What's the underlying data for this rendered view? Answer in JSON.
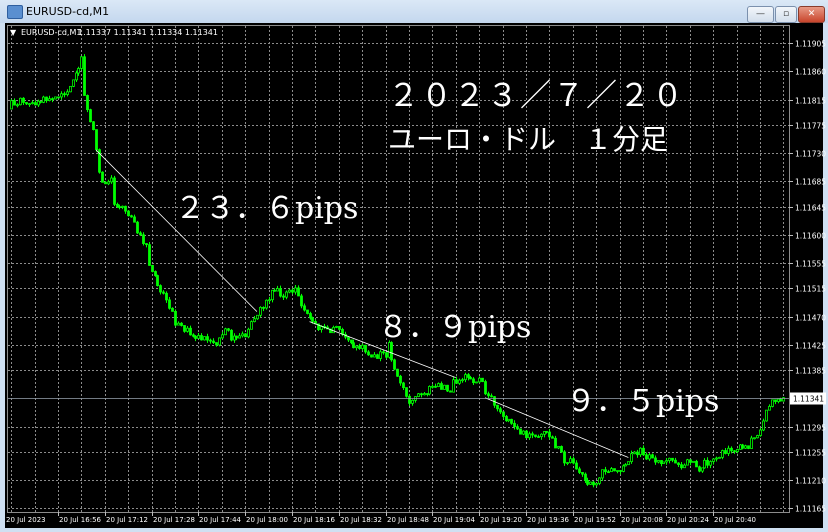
{
  "window": {
    "title": "EURUSD-cd,M1",
    "buttons": {
      "minimize": "—",
      "maximize": "▫",
      "close": "✕"
    }
  },
  "chart_header": {
    "symbol": "EURUSD-cd,M1",
    "ohlc": "1.11337 1.11341 1.11334 1.11341"
  },
  "colors": {
    "background": "#000000",
    "candle": "#00ff00",
    "grid": "#8c8c8c",
    "trendline": "#ffffff",
    "text": "#ffffff"
  },
  "annotations": {
    "date": "２０２３／７／２０",
    "subtitle": "ユーロ・ドル　１分足",
    "move1": "２３．６pips",
    "move2": "８．９pips",
    "move3": "９．５pips"
  },
  "chart_data": {
    "type": "candlestick",
    "symbol": "EURUSD-cd",
    "timeframe": "M1",
    "current_price": 1.11341,
    "y_ticks": [
      "1.11905",
      "1.11860",
      "1.11815",
      "1.11775",
      "1.11730",
      "1.11685",
      "1.11645",
      "1.11600",
      "1.11555",
      "1.11515",
      "1.11470",
      "1.11425",
      "1.11385",
      "1.11295",
      "1.11255",
      "1.11210",
      "1.11165"
    ],
    "x_ticks": [
      "20 Jul 2023",
      "20 Jul 16:56",
      "20 Jul 17:12",
      "20 Jul 17:28",
      "20 Jul 17:44",
      "20 Jul 18:00",
      "20 Jul 18:16",
      "20 Jul 18:32",
      "20 Jul 18:48",
      "20 Jul 19:04",
      "20 Jul 19:20",
      "20 Jul 19:36",
      "20 Jul 19:52",
      "20 Jul 20:08",
      "20 Jul 20:24",
      "20 Jul 20:40"
    ],
    "grid": true,
    "approx_close_path": [
      [
        "16:39",
        1.11806
      ],
      [
        "16:43",
        1.11814
      ],
      [
        "16:48",
        1.1181
      ],
      [
        "16:53",
        1.11819
      ],
      [
        "16:57",
        1.11822
      ],
      [
        "17:00",
        1.11833
      ],
      [
        "17:02",
        1.11854
      ],
      [
        "17:04",
        1.11886
      ],
      [
        "17:05",
        1.11822
      ],
      [
        "17:06",
        1.11798
      ],
      [
        "17:08",
        1.11767
      ],
      [
        "17:09",
        1.11735
      ],
      [
        "17:10",
        1.11695
      ],
      [
        "17:12",
        1.11679
      ],
      [
        "17:14",
        1.11687
      ],
      [
        "17:15",
        1.11647
      ],
      [
        "17:19",
        1.11639
      ],
      [
        "17:22",
        1.11616
      ],
      [
        "17:26",
        1.11584
      ],
      [
        "17:27",
        1.11552
      ],
      [
        "17:31",
        1.11512
      ],
      [
        "17:34",
        1.11488
      ],
      [
        "17:36",
        1.11457
      ],
      [
        "17:39",
        1.11449
      ],
      [
        "17:43",
        1.11441
      ],
      [
        "17:46",
        1.11433
      ],
      [
        "17:50",
        1.11425
      ],
      [
        "17:53",
        1.11449
      ],
      [
        "17:56",
        1.11433
      ],
      [
        "18:00",
        1.11441
      ],
      [
        "18:03",
        1.11465
      ],
      [
        "18:07",
        1.11496
      ],
      [
        "18:10",
        1.11512
      ],
      [
        "18:13",
        1.11504
      ],
      [
        "18:17",
        1.11512
      ],
      [
        "18:20",
        1.1148
      ],
      [
        "18:23",
        1.11457
      ],
      [
        "18:27",
        1.11449
      ],
      [
        "18:31",
        1.11449
      ],
      [
        "18:34",
        1.11433
      ],
      [
        "18:37",
        1.11425
      ],
      [
        "18:41",
        1.11417
      ],
      [
        "18:44",
        1.11409
      ],
      [
        "18:48",
        1.11409
      ],
      [
        "18:49",
        1.11425
      ],
      [
        "18:51",
        1.11385
      ],
      [
        "18:54",
        1.11361
      ],
      [
        "18:56",
        1.11329
      ],
      [
        "18:59",
        1.11345
      ],
      [
        "19:03",
        1.11353
      ],
      [
        "19:06",
        1.11361
      ],
      [
        "19:10",
        1.11353
      ],
      [
        "19:11",
        1.11369
      ],
      [
        "19:15",
        1.11372
      ],
      [
        "19:18",
        1.11366
      ],
      [
        "19:20",
        1.11377
      ],
      [
        "19:22",
        1.11353
      ],
      [
        "19:25",
        1.11329
      ],
      [
        "19:29",
        1.11306
      ],
      [
        "19:32",
        1.1129
      ],
      [
        "19:35",
        1.11282
      ],
      [
        "19:39",
        1.11282
      ],
      [
        "19:42",
        1.1129
      ],
      [
        "19:46",
        1.11266
      ],
      [
        "19:49",
        1.11242
      ],
      [
        "19:52",
        1.11239
      ],
      [
        "19:56",
        1.1121
      ],
      [
        "19:59",
        1.11198
      ],
      [
        "20:01",
        1.11218
      ],
      [
        "20:04",
        1.11226
      ],
      [
        "20:08",
        1.11226
      ],
      [
        "20:11",
        1.11245
      ],
      [
        "20:15",
        1.11255
      ],
      [
        "20:18",
        1.11245
      ],
      [
        "20:22",
        1.11242
      ],
      [
        "20:25",
        1.11239
      ],
      [
        "20:28",
        1.11234
      ],
      [
        "20:32",
        1.11239
      ],
      [
        "20:35",
        1.11229
      ],
      [
        "20:39",
        1.11242
      ],
      [
        "20:42",
        1.1125
      ],
      [
        "20:45",
        1.11258
      ],
      [
        "20:49",
        1.11261
      ],
      [
        "20:52",
        1.11266
      ],
      [
        "20:55",
        1.11282
      ],
      [
        "20:57",
        1.11306
      ],
      [
        "20:59",
        1.11329
      ],
      [
        "21:00",
        1.11341
      ],
      [
        "21:02",
        1.11337
      ],
      [
        "21:04",
        1.11341
      ]
    ],
    "trendlines": [
      {
        "from": [
          "17:09",
          1.11735
        ],
        "to": [
          "18:04",
          1.11478
        ]
      },
      {
        "from": [
          "18:22",
          1.11462
        ],
        "to": [
          "19:12",
          1.11373
        ]
      },
      {
        "from": [
          "19:22",
          1.11341
        ],
        "to": [
          "20:11",
          1.11246
        ]
      }
    ]
  }
}
